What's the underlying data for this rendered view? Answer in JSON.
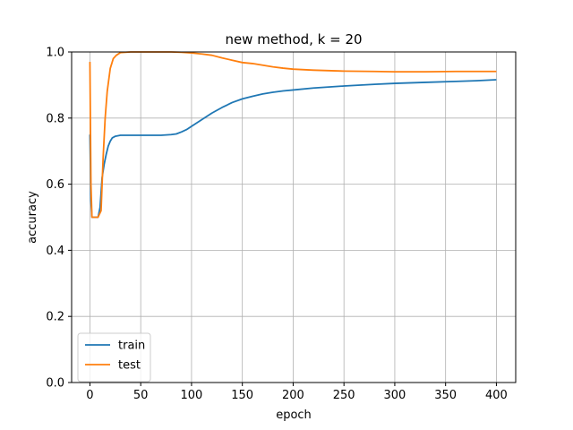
{
  "chart_data": {
    "type": "line",
    "title": "new method, k = 20",
    "xlabel": "epoch",
    "ylabel": "accuracy",
    "xlim": [
      -18,
      419
    ],
    "ylim": [
      0.0,
      1.0
    ],
    "xticks": [
      0,
      50,
      100,
      150,
      200,
      250,
      300,
      350,
      400
    ],
    "yticks": [
      0.0,
      0.2,
      0.4,
      0.6,
      0.8,
      1.0
    ],
    "xtick_labels": [
      "0",
      "50",
      "100",
      "150",
      "200",
      "250",
      "300",
      "350",
      "400"
    ],
    "ytick_labels": [
      "0.0",
      "0.2",
      "0.4",
      "0.6",
      "0.8",
      "1.0"
    ],
    "grid": true,
    "legend_position": "lower-left",
    "series": [
      {
        "name": "train",
        "color": "#1f77b4",
        "x": [
          0,
          1,
          2,
          4,
          8,
          10,
          12,
          14,
          16,
          18,
          20,
          22,
          25,
          30,
          40,
          50,
          60,
          70,
          80,
          85,
          90,
          95,
          100,
          110,
          120,
          130,
          140,
          150,
          160,
          170,
          180,
          190,
          200,
          220,
          250,
          280,
          300,
          330,
          360,
          380,
          400
        ],
        "y": [
          0.75,
          0.55,
          0.5,
          0.5,
          0.5,
          0.53,
          0.62,
          0.66,
          0.69,
          0.715,
          0.73,
          0.74,
          0.745,
          0.748,
          0.748,
          0.748,
          0.748,
          0.748,
          0.75,
          0.752,
          0.758,
          0.765,
          0.775,
          0.795,
          0.815,
          0.832,
          0.847,
          0.858,
          0.866,
          0.873,
          0.878,
          0.882,
          0.885,
          0.891,
          0.897,
          0.902,
          0.905,
          0.908,
          0.911,
          0.913,
          0.916
        ]
      },
      {
        "name": "test",
        "color": "#ff7f0e",
        "x": [
          0,
          1,
          2,
          4,
          8,
          11,
          13,
          15,
          17,
          20,
          23,
          26,
          30,
          40,
          50,
          60,
          70,
          80,
          90,
          100,
          110,
          120,
          130,
          140,
          150,
          160,
          170,
          180,
          190,
          200,
          220,
          250,
          280,
          300,
          330,
          360,
          380,
          400
        ],
        "y": [
          0.97,
          0.6,
          0.5,
          0.5,
          0.5,
          0.52,
          0.68,
          0.8,
          0.88,
          0.95,
          0.98,
          0.99,
          0.998,
          1.0,
          1.0,
          1.0,
          1.0,
          1.0,
          0.999,
          0.997,
          0.994,
          0.99,
          0.982,
          0.975,
          0.968,
          0.965,
          0.96,
          0.955,
          0.951,
          0.948,
          0.945,
          0.942,
          0.941,
          0.94,
          0.94,
          0.941,
          0.941,
          0.941
        ]
      }
    ]
  }
}
